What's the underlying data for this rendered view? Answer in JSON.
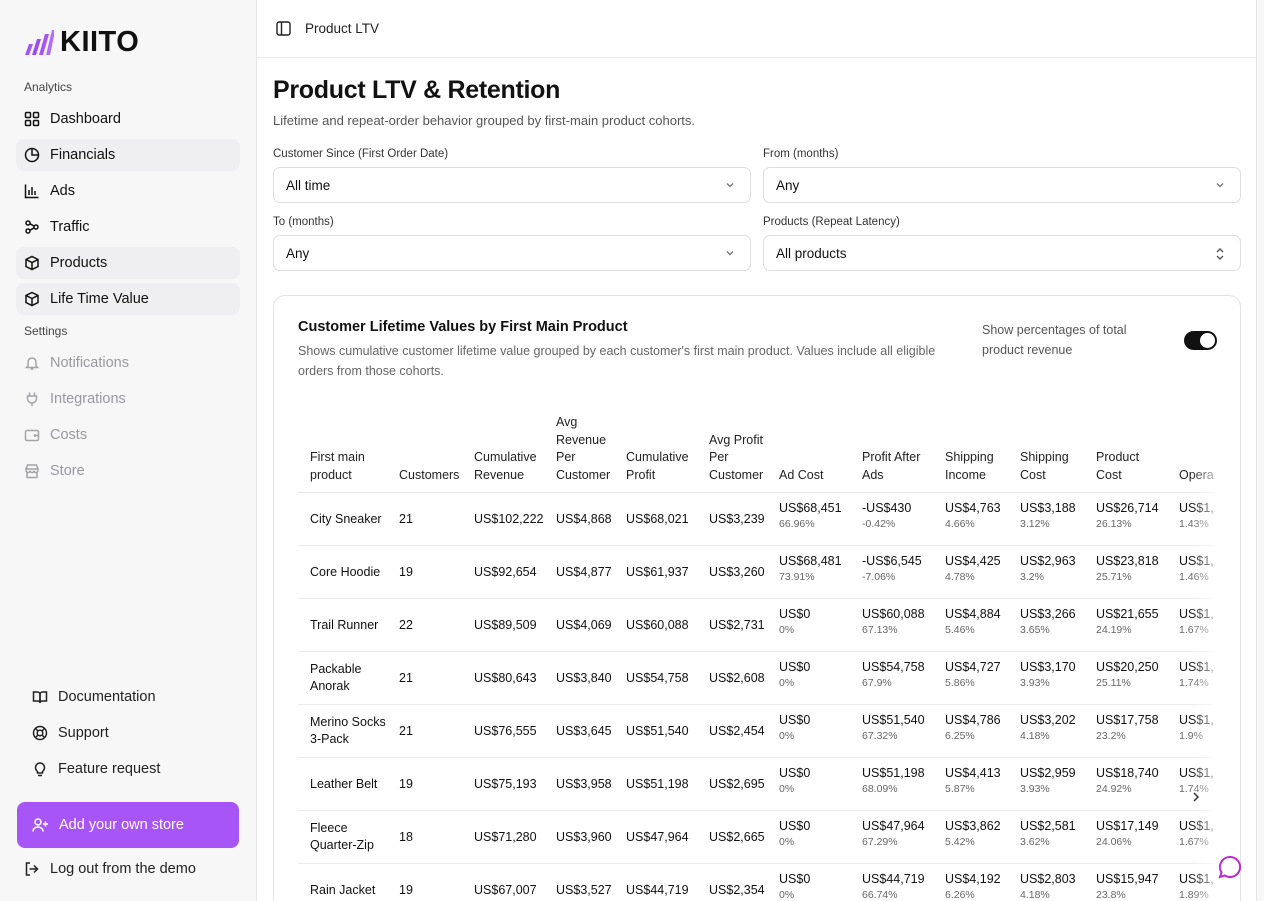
{
  "brand": {
    "name": "KIITO",
    "accent": "#a855f7"
  },
  "sidebar": {
    "analytics_label": "Analytics",
    "settings_label": "Settings",
    "analytics": [
      {
        "label": "Dashboard",
        "icon": "grid-icon"
      },
      {
        "label": "Financials",
        "icon": "pie-chart-icon"
      },
      {
        "label": "Ads",
        "icon": "bar-chart-icon"
      },
      {
        "label": "Traffic",
        "icon": "network-icon"
      },
      {
        "label": "Products",
        "icon": "package-icon"
      },
      {
        "label": "Life Time Value",
        "icon": "package-icon"
      }
    ],
    "settings": [
      {
        "label": "Notifications",
        "icon": "bell-icon"
      },
      {
        "label": "Integrations",
        "icon": "plug-icon"
      },
      {
        "label": "Costs",
        "icon": "wallet-icon"
      },
      {
        "label": "Store",
        "icon": "store-icon"
      }
    ],
    "footer": [
      {
        "label": "Documentation",
        "icon": "book-icon"
      },
      {
        "label": "Support",
        "icon": "lifebuoy-icon"
      },
      {
        "label": "Feature request",
        "icon": "lightbulb-icon"
      }
    ],
    "add_store": "Add your own store",
    "logout": "Log out from the demo"
  },
  "topbar": {
    "title": "Product LTV"
  },
  "page": {
    "title": "Product LTV & Retention",
    "subtitle": "Lifetime and repeat-order behavior grouped by first-main product cohorts."
  },
  "filters": {
    "customer_since": {
      "label": "Customer Since (First Order Date)",
      "value": "All time"
    },
    "from_months": {
      "label": "From (months)",
      "value": "Any"
    },
    "to_months": {
      "label": "To (months)",
      "value": "Any"
    },
    "products": {
      "label": "Products (Repeat Latency)",
      "value": "All products"
    }
  },
  "card": {
    "title": "Customer Lifetime Values by First Main Product",
    "description": "Shows cumulative customer lifetime value grouped by each customer's first main product. Values include all eligible orders from those cohorts.",
    "toggle_label": "Show percentages of total product revenue",
    "toggle_on": true
  },
  "table": {
    "headers": [
      "First main product",
      "Customers",
      "Cumulative Revenue",
      "Avg Revenue Per Customer",
      "Cumulative Profit",
      "Avg Profit Per Customer",
      "Ad Cost",
      "Profit After Ads",
      "Shipping Income",
      "Shipping Cost",
      "Product Cost",
      "Operating Cost"
    ],
    "rows": [
      {
        "name": "City Sneaker",
        "customers": "21",
        "cum_rev": "US$102,222",
        "avg_rev": "US$4,868",
        "cum_profit": "US$68,021",
        "avg_profit": "US$3,239",
        "ad_cost": "US$68,451",
        "ad_cost_pct": "66.96%",
        "paa": "-US$430",
        "paa_pct": "-0.42%",
        "ship_inc": "US$4,763",
        "ship_inc_pct": "4.66%",
        "ship_cost": "US$3,188",
        "ship_cost_pct": "3.12%",
        "prod_cost": "US$26,714",
        "prod_cost_pct": "26.13%",
        "op_cost": "US$1,",
        "op_cost_pct": "1.43%"
      },
      {
        "name": "Core Hoodie",
        "customers": "19",
        "cum_rev": "US$92,654",
        "avg_rev": "US$4,877",
        "cum_profit": "US$61,937",
        "avg_profit": "US$3,260",
        "ad_cost": "US$68,481",
        "ad_cost_pct": "73.91%",
        "paa": "-US$6,545",
        "paa_pct": "-7.06%",
        "ship_inc": "US$4,425",
        "ship_inc_pct": "4.78%",
        "ship_cost": "US$2,963",
        "ship_cost_pct": "3.2%",
        "prod_cost": "US$23,818",
        "prod_cost_pct": "25.71%",
        "op_cost": "US$1,",
        "op_cost_pct": "1.46%"
      },
      {
        "name": "Trail Runner",
        "customers": "22",
        "cum_rev": "US$89,509",
        "avg_rev": "US$4,069",
        "cum_profit": "US$60,088",
        "avg_profit": "US$2,731",
        "ad_cost": "US$0",
        "ad_cost_pct": "0%",
        "paa": "US$60,088",
        "paa_pct": "67.13%",
        "ship_inc": "US$4,884",
        "ship_inc_pct": "5.46%",
        "ship_cost": "US$3,266",
        "ship_cost_pct": "3.65%",
        "prod_cost": "US$21,655",
        "prod_cost_pct": "24.19%",
        "op_cost": "US$1,",
        "op_cost_pct": "1.67%"
      },
      {
        "name": "Packable Anorak",
        "customers": "21",
        "cum_rev": "US$80,643",
        "avg_rev": "US$3,840",
        "cum_profit": "US$54,758",
        "avg_profit": "US$2,608",
        "ad_cost": "US$0",
        "ad_cost_pct": "0%",
        "paa": "US$54,758",
        "paa_pct": "67.9%",
        "ship_inc": "US$4,727",
        "ship_inc_pct": "5.86%",
        "ship_cost": "US$3,170",
        "ship_cost_pct": "3.93%",
        "prod_cost": "US$20,250",
        "prod_cost_pct": "25.11%",
        "op_cost": "US$1,",
        "op_cost_pct": "1.74%"
      },
      {
        "name": "Merino Socks 3-Pack",
        "customers": "21",
        "cum_rev": "US$76,555",
        "avg_rev": "US$3,645",
        "cum_profit": "US$51,540",
        "avg_profit": "US$2,454",
        "ad_cost": "US$0",
        "ad_cost_pct": "0%",
        "paa": "US$51,540",
        "paa_pct": "67.32%",
        "ship_inc": "US$4,786",
        "ship_inc_pct": "6.25%",
        "ship_cost": "US$3,202",
        "ship_cost_pct": "4.18%",
        "prod_cost": "US$17,758",
        "prod_cost_pct": "23.2%",
        "op_cost": "US$1,",
        "op_cost_pct": "1.9%"
      },
      {
        "name": "Leather Belt",
        "customers": "19",
        "cum_rev": "US$75,193",
        "avg_rev": "US$3,958",
        "cum_profit": "US$51,198",
        "avg_profit": "US$2,695",
        "ad_cost": "US$0",
        "ad_cost_pct": "0%",
        "paa": "US$51,198",
        "paa_pct": "68.09%",
        "ship_inc": "US$4,413",
        "ship_inc_pct": "5.87%",
        "ship_cost": "US$2,959",
        "ship_cost_pct": "3.93%",
        "prod_cost": "US$18,740",
        "prod_cost_pct": "24.92%",
        "op_cost": "US$1,",
        "op_cost_pct": "1.74%"
      },
      {
        "name": "Fleece Quarter-Zip",
        "customers": "18",
        "cum_rev": "US$71,280",
        "avg_rev": "US$3,960",
        "cum_profit": "US$47,964",
        "avg_profit": "US$2,665",
        "ad_cost": "US$0",
        "ad_cost_pct": "0%",
        "paa": "US$47,964",
        "paa_pct": "67.29%",
        "ship_inc": "US$3,862",
        "ship_inc_pct": "5.42%",
        "ship_cost": "US$2,581",
        "ship_cost_pct": "3.62%",
        "prod_cost": "US$17,149",
        "prod_cost_pct": "24.06%",
        "op_cost": "US$1,",
        "op_cost_pct": "1.67%"
      },
      {
        "name": "Rain Jacket",
        "customers": "19",
        "cum_rev": "US$67,007",
        "avg_rev": "US$3,527",
        "cum_profit": "US$44,719",
        "avg_profit": "US$2,354",
        "ad_cost": "US$0",
        "ad_cost_pct": "0%",
        "paa": "US$44,719",
        "paa_pct": "66.74%",
        "ship_inc": "US$4,192",
        "ship_inc_pct": "6.26%",
        "ship_cost": "US$2,803",
        "ship_cost_pct": "4.18%",
        "prod_cost": "US$15,947",
        "prod_cost_pct": "23.8%",
        "op_cost": "US$1,",
        "op_cost_pct": "1.89%"
      }
    ]
  }
}
